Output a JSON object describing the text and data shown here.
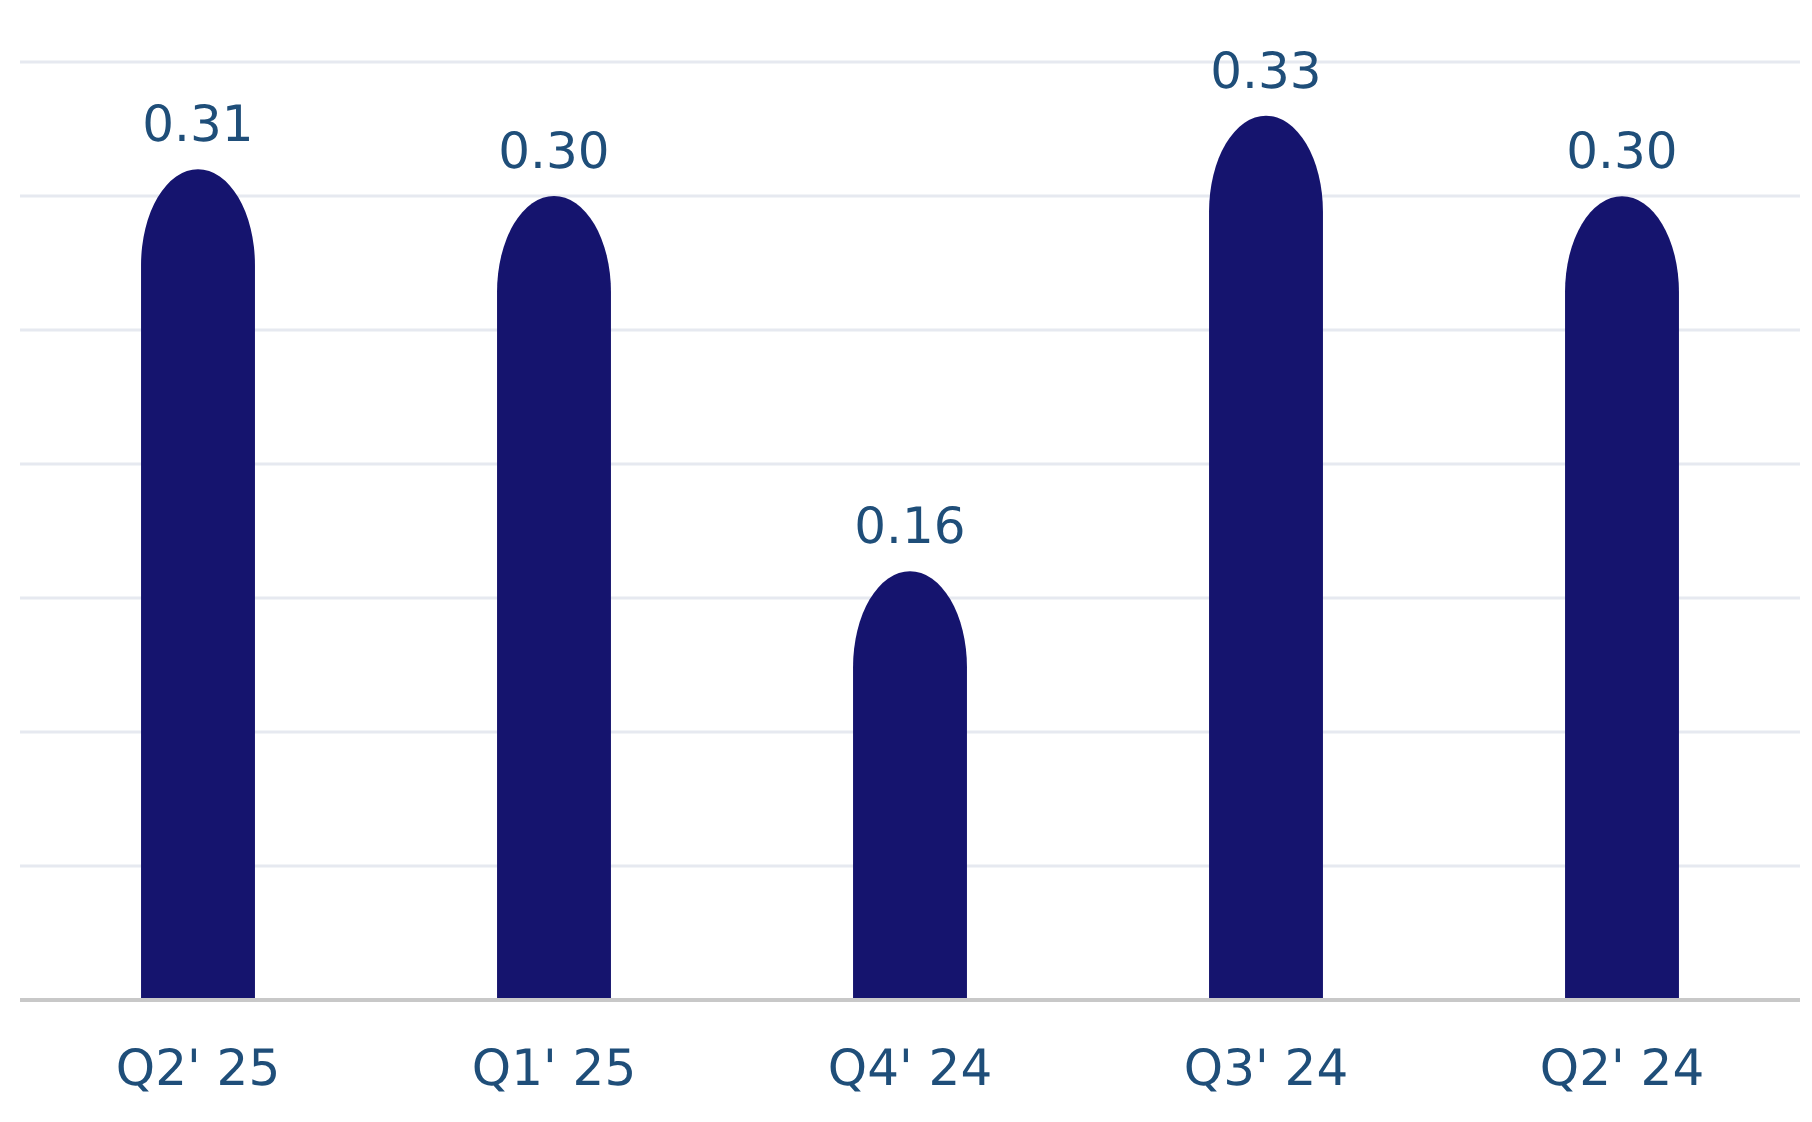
{
  "chart_data": {
    "type": "bar",
    "categories": [
      "Q2' 25",
      "Q1' 25",
      "Q4' 24",
      "Q3' 24",
      "Q2' 24"
    ],
    "values": [
      0.31,
      0.3,
      0.16,
      0.33,
      0.3
    ],
    "value_labels": [
      "0.31",
      "0.30",
      "0.16",
      "0.33",
      "0.30"
    ],
    "color": "#15146e",
    "ylim": [
      0,
      0.35
    ],
    "yticks": [
      {
        "value": 0,
        "label": null
      },
      {
        "value": 0.05,
        "label": null
      },
      {
        "value": 0.1,
        "label": null
      },
      {
        "value": 0.15,
        "label": null
      },
      {
        "value": 0.2,
        "label": null
      },
      {
        "value": 0.25,
        "label": null
      },
      {
        "value": 0.3,
        "label": null
      },
      {
        "value": 0.35,
        "label": null
      }
    ],
    "grid": "y",
    "tick_labels": "x"
  }
}
